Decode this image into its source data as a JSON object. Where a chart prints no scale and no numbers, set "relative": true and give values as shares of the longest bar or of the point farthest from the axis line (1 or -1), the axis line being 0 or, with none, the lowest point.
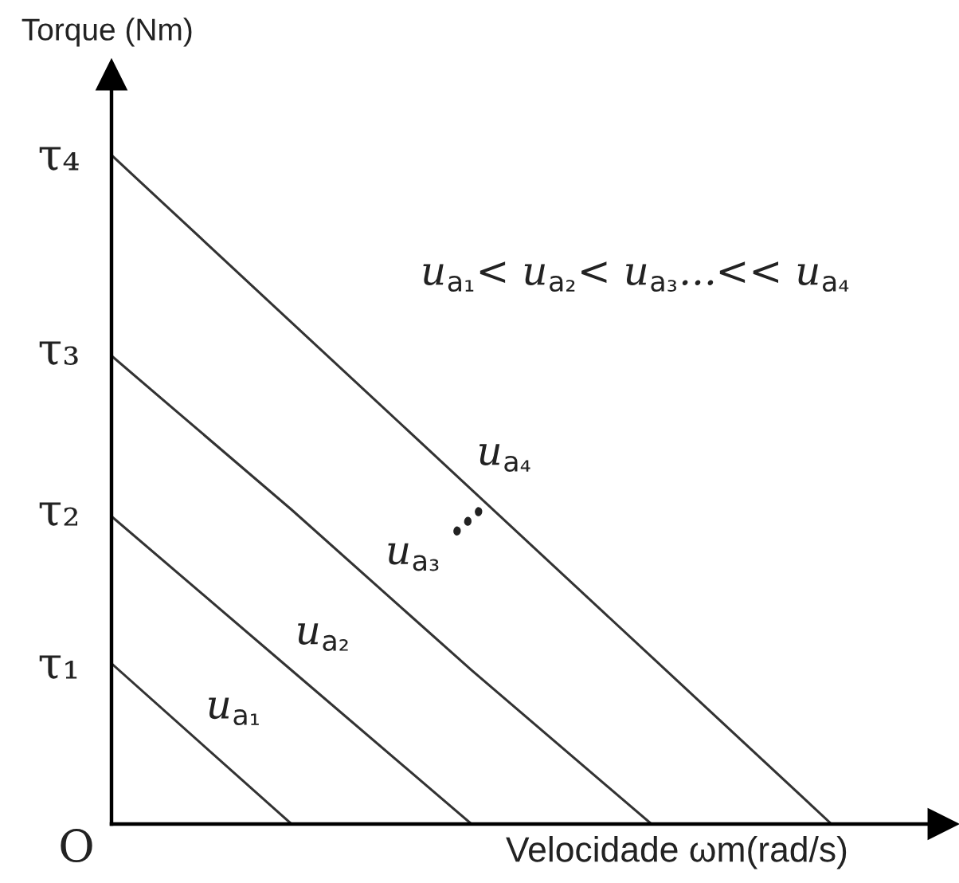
{
  "chart_data": {
    "type": "line",
    "relative": true,
    "tick_labels": false,
    "xlabel": "Velocidade ωm(rad/s)",
    "ylabel": "Torque (Nm)",
    "categories": [
      null,
      null,
      null,
      null,
      null
    ],
    "series": [
      {
        "name": "u$_{a₁}$",
        "color": "#333333",
        "values": [
          0.24,
          0,
          null,
          null,
          null
        ]
      },
      {
        "name": "u$_{a₂}$",
        "color": "#333333",
        "values": [
          0.46,
          0.23,
          0,
          null,
          null
        ]
      },
      {
        "name": "u$_{a₃}$",
        "color": "#333333",
        "values": [
          0.7,
          0.47,
          0.23,
          0,
          null
        ]
      },
      {
        "name": "u$_{a₄}$",
        "color": "#333333",
        "values": [
          1,
          0.75,
          0.5,
          0.25,
          0
        ]
      }
    ],
    "annotations": [
      "τ₄",
      "u$_{a₁}$< u$_{a₂}$< u$_{a₃}$...<< u$_{a₄}$",
      "τ₃",
      "…",
      "τ₂",
      "τ₁",
      "O"
    ]
  }
}
